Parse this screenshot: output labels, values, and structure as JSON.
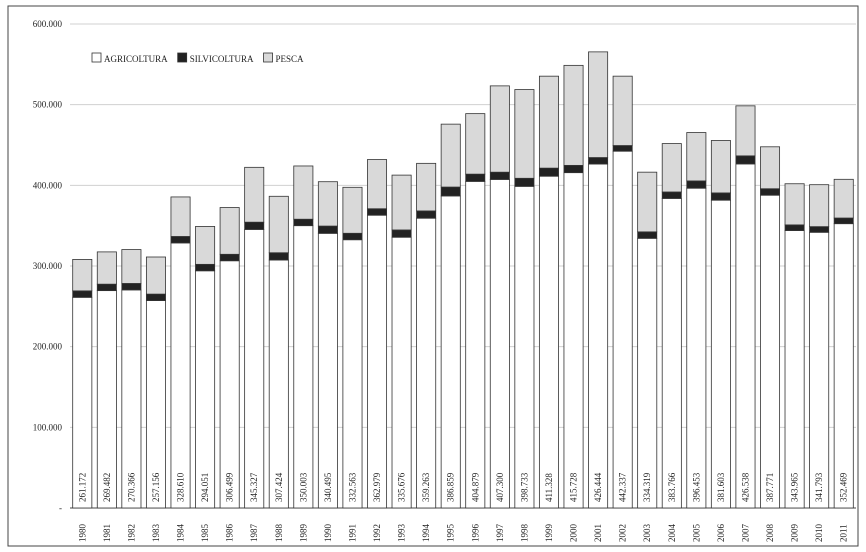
{
  "chart_data": {
    "type": "bar",
    "stacked": true,
    "categories": [
      "1980",
      "1981",
      "1982",
      "1983",
      "1984",
      "1985",
      "1986",
      "1987",
      "1988",
      "1989",
      "1990",
      "1991",
      "1992",
      "1993",
      "1994",
      "1995",
      "1996",
      "1997",
      "1998",
      "1999",
      "2000",
      "2001",
      "2002",
      "2003",
      "2004",
      "2005",
      "2006",
      "2007",
      "2008",
      "2009",
      "2010",
      "2011"
    ],
    "series": [
      {
        "name": "AGRICOLTURA",
        "color": "#ffffff",
        "values": [
          261172,
          269482,
          270366,
          257156,
          328610,
          294051,
          306499,
          345327,
          307424,
          350003,
          340495,
          332563,
          362979,
          335676,
          359263,
          386859,
          404879,
          407300,
          398733,
          411328,
          415728,
          426444,
          442337,
          334319,
          383766,
          396453,
          381603,
          426538,
          387771,
          343965,
          341793,
          352469
        ],
        "value_labels": [
          "261.172",
          "269.482",
          "270.366",
          "257.156",
          "328.610",
          "294.051",
          "306.499",
          "345.327",
          "307.424",
          "350.003",
          "340.495",
          "332.563",
          "362.979",
          "335.676",
          "359.263",
          "386.859",
          "404.879",
          "407.300",
          "398.733",
          "411.328",
          "415.728",
          "426.444",
          "442.337",
          "334.319",
          "383.766",
          "396.453",
          "381.603",
          "426.538",
          "387.771",
          "343.965",
          "341.793",
          "352.469"
        ]
      },
      {
        "name": "SILVICOLTURA",
        "color": "#222222",
        "values": [
          8000,
          8000,
          8000,
          8000,
          8000,
          8000,
          8000,
          9000,
          9000,
          8000,
          9000,
          8000,
          8000,
          9000,
          9000,
          11000,
          9000,
          9000,
          10000,
          10000,
          9000,
          8000,
          7000,
          8000,
          8000,
          9000,
          9000,
          10000,
          8000,
          7000,
          7000,
          7000
        ]
      },
      {
        "name": "PESCA",
        "color": "#d9d9d9",
        "values": [
          39000,
          40000,
          42000,
          46000,
          49000,
          47000,
          58000,
          68000,
          70000,
          66000,
          55000,
          57000,
          61000,
          68000,
          59000,
          78000,
          75000,
          107000,
          110000,
          114000,
          124000,
          131000,
          86000,
          74000,
          60000,
          60000,
          65000,
          62000,
          52000,
          51000,
          52000,
          48000
        ]
      }
    ],
    "ylim": [
      0,
      600000
    ],
    "yticks": [
      {
        "value": 0,
        "label": "-"
      },
      {
        "value": 100000,
        "label": "100.000"
      },
      {
        "value": 200000,
        "label": "200.000"
      },
      {
        "value": 300000,
        "label": "300.000"
      },
      {
        "value": 400000,
        "label": "400.000"
      },
      {
        "value": 500000,
        "label": "500.000"
      },
      {
        "value": 600000,
        "label": "600.000"
      }
    ],
    "grid": true,
    "legend": "top-left"
  }
}
